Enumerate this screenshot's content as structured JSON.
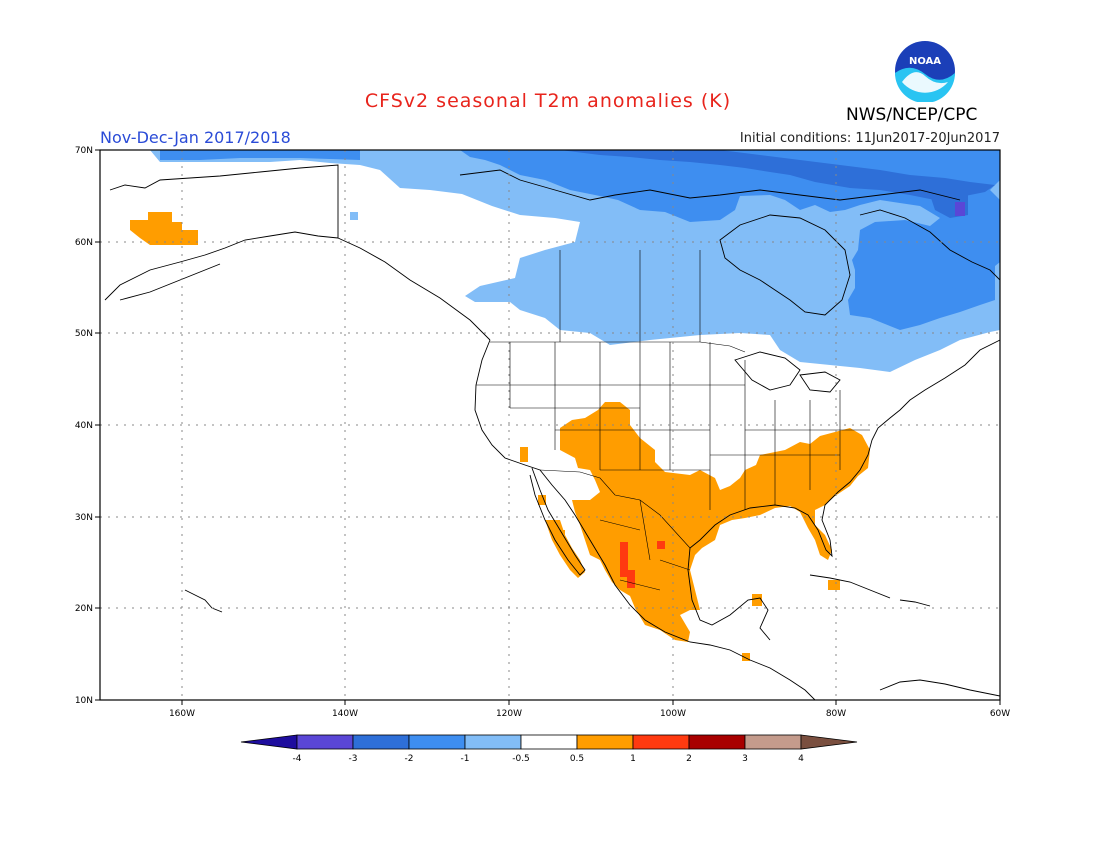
{
  "header": {
    "title": "CFSv2 seasonal T2m anomalies (K)",
    "period": "Nov-Dec-Jan 2017/2018",
    "initial_conditions": "Initial conditions: 11Jun2017-20Jun2017",
    "agency": "NWS/NCEP/CPC",
    "logo_text": "NOAA"
  },
  "map": {
    "lat_labels": [
      "70N",
      "60N",
      "50N",
      "40N",
      "30N",
      "20N",
      "10N"
    ],
    "lon_labels": [
      "160W",
      "140W",
      "120W",
      "100W",
      "80W",
      "60W"
    ],
    "lon_range": [
      -170,
      -60
    ],
    "lat_range": [
      10,
      70
    ]
  },
  "colorbar": {
    "labels": [
      "-4",
      "-3",
      "-2",
      "-1",
      "-0.5",
      "0.5",
      "1",
      "2",
      "3",
      "4"
    ],
    "colors": [
      "#1e0d9e",
      "#5a46d6",
      "#2e6fd8",
      "#3e8ef0",
      "#82bdf7",
      "#ffffff",
      "#ff9d00",
      "#ff3a10",
      "#a80000",
      "#c49b8c",
      "#7a4f3f"
    ]
  },
  "anomaly_colors": {
    "light_blue": "#82bdf7",
    "mid_blue": "#3e8ef0",
    "dark_blue": "#2e6fd8",
    "purple": "#5a46d6",
    "orange": "#ff9d00",
    "red": "#ff3a10"
  }
}
